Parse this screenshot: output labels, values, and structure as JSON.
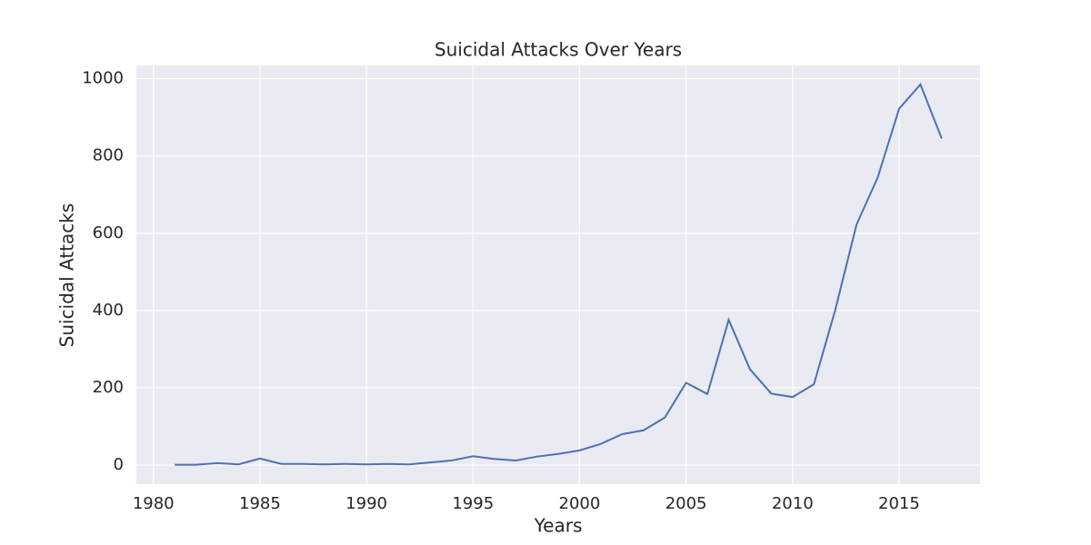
{
  "chart_data": {
    "type": "line",
    "title": "Suicidal Attacks Over Years",
    "xlabel": "Years",
    "ylabel": "Suicidal Attacks",
    "x": [
      1981,
      1982,
      1983,
      1984,
      1985,
      1986,
      1987,
      1988,
      1989,
      1990,
      1991,
      1992,
      1993,
      1994,
      1995,
      1996,
      1997,
      1998,
      1999,
      2000,
      2001,
      2002,
      2003,
      2004,
      2005,
      2006,
      2007,
      2008,
      2009,
      2010,
      2011,
      2012,
      2013,
      2014,
      2015,
      2016,
      2017
    ],
    "series": [
      {
        "color": "#4c72b0",
        "values": [
          1,
          1,
          5,
          2,
          17,
          3,
          3,
          2,
          3,
          2,
          3,
          2,
          7,
          12,
          23,
          16,
          12,
          22,
          29,
          38,
          55,
          80,
          90,
          123,
          213,
          184,
          376,
          248,
          185,
          176,
          209,
          401,
          622,
          745,
          922,
          985,
          845
        ]
      }
    ],
    "xlim": [
      1979.2,
      2018.8
    ],
    "xticks": [
      1980,
      1985,
      1990,
      1995,
      2000,
      2005,
      2010,
      2015
    ],
    "ylim": [
      -49.25,
      1034.25
    ],
    "yticks": [
      0,
      200,
      400,
      600,
      800,
      1000
    ],
    "grid": true
  }
}
